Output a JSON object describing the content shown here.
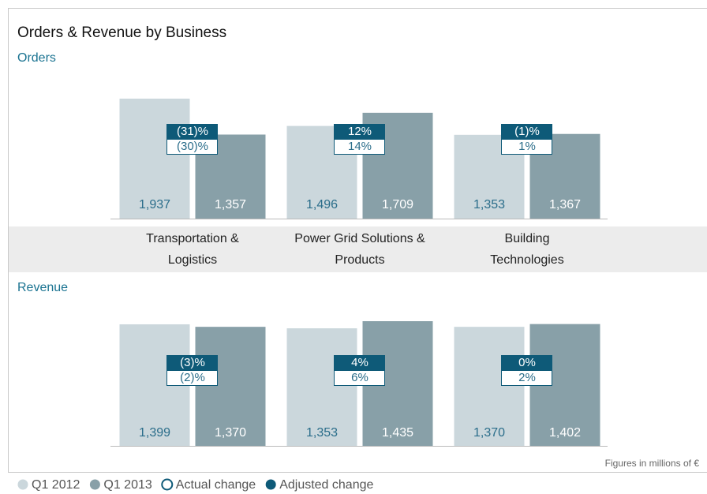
{
  "chart_data": {
    "type": "bar",
    "title": "Orders & Revenue by Business",
    "note": "Figures in millions of €",
    "categories": [
      "Transportation & Logistics",
      "Power Grid Solutions & Products",
      "Building Technologies"
    ],
    "series_legend": [
      {
        "name": "Q1 2012",
        "color": "#cbd7dc"
      },
      {
        "name": "Q1 2013",
        "color": "#88a0a8"
      }
    ],
    "change_legend": {
      "adjusted": {
        "name": "Adjusted change",
        "color": "#0e5a78"
      },
      "actual": {
        "name": "Actual change",
        "color": "#ffffff"
      }
    },
    "panels": [
      {
        "title": "Orders",
        "series": [
          {
            "name": "Q1 2012",
            "values": [
              1937,
              1496,
              1353
            ],
            "value_labels": [
              "1,937",
              "1,496",
              "1,353"
            ]
          },
          {
            "name": "Q1 2013",
            "values": [
              1357,
              1709,
              1367
            ],
            "value_labels": [
              "1,357",
              "1,709",
              "1,367"
            ]
          }
        ],
        "adjusted_change": {
          "values": [
            -31,
            12,
            -1
          ],
          "value_labels": [
            "(31)%",
            "12%",
            "(1)%"
          ]
        },
        "actual_change": {
          "values": [
            -30,
            14,
            1
          ],
          "value_labels": [
            "(30)%",
            "14%",
            "1%"
          ]
        }
      },
      {
        "title": "Revenue",
        "series": [
          {
            "name": "Q1 2012",
            "values": [
              1399,
              1353,
              1370
            ],
            "value_labels": [
              "1,399",
              "1,353",
              "1,370"
            ]
          },
          {
            "name": "Q1 2013",
            "values": [
              1370,
              1435,
              1402
            ],
            "value_labels": [
              "1,370",
              "1,435",
              "1,402"
            ]
          }
        ],
        "adjusted_change": {
          "values": [
            -3,
            4,
            0
          ],
          "value_labels": [
            "(3)%",
            "4%",
            "0%"
          ]
        },
        "actual_change": {
          "values": [
            -2,
            6,
            2
          ],
          "value_labels": [
            "(2)%",
            "6%",
            "2%"
          ]
        }
      }
    ]
  }
}
